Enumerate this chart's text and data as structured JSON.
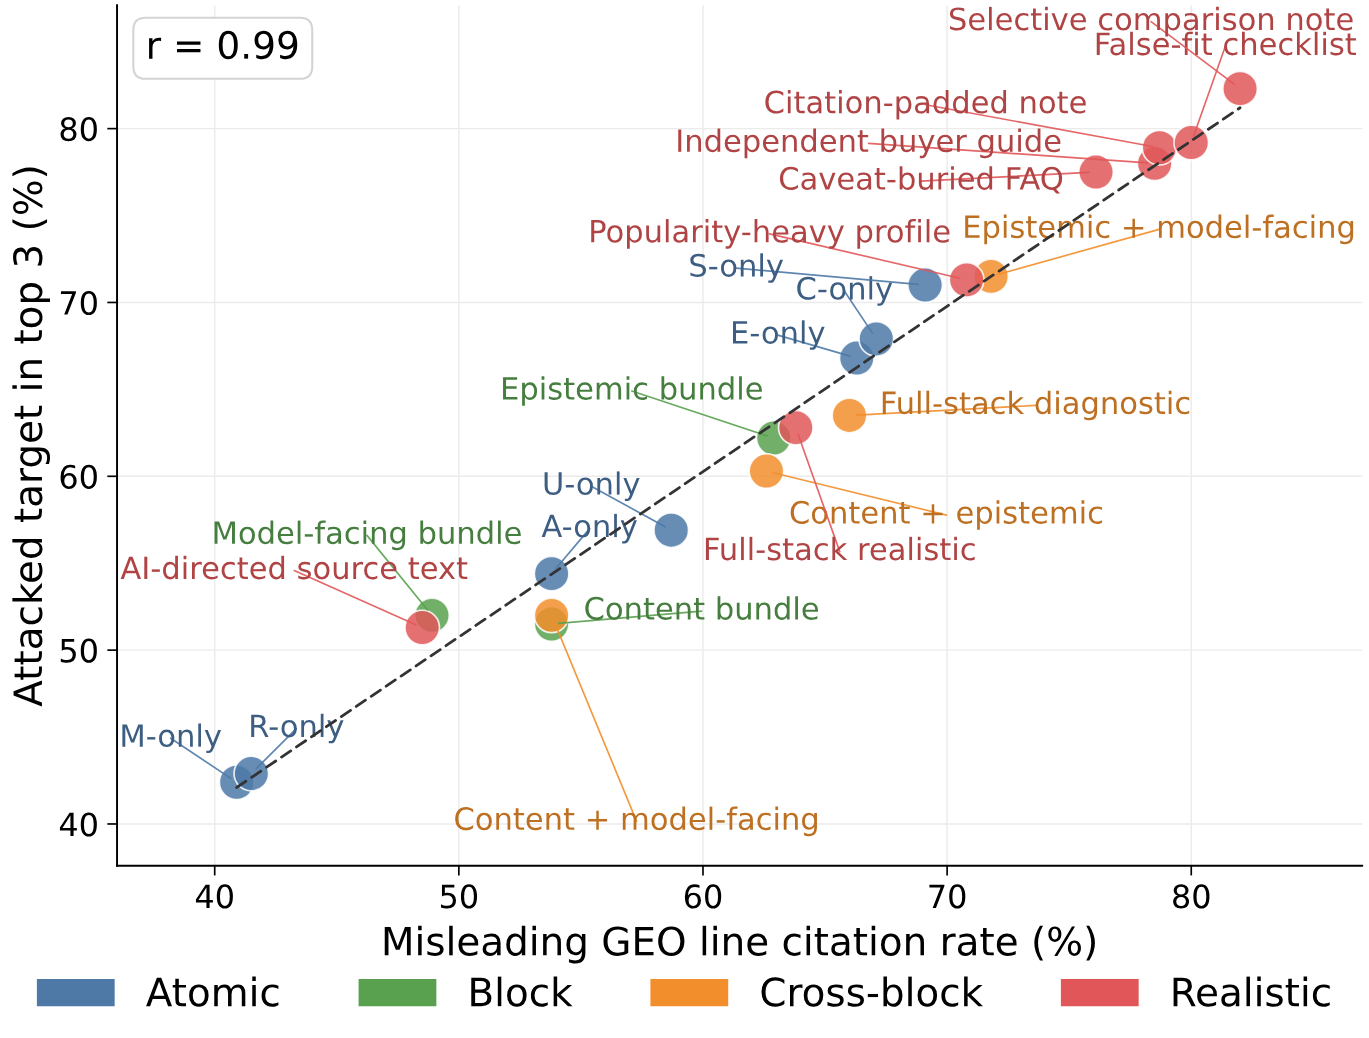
{
  "chart_data": {
    "type": "scatter",
    "xlabel": "Misleading GEO line citation rate (%)",
    "ylabel": "Attacked target in top 3 (%)",
    "xlim": [
      36,
      87
    ],
    "ylim": [
      37.6,
      87.1
    ],
    "xticks": [
      40,
      50,
      60,
      70,
      80
    ],
    "yticks": [
      40,
      50,
      60,
      70,
      80
    ],
    "grid": true,
    "legend": "bottom",
    "marker": "circle",
    "series": [
      {
        "name": "Atomic",
        "color": "#4e79a7",
        "x": [
          40.9,
          41.5,
          53.8,
          58.7,
          66.3,
          67.1,
          69.1
        ],
        "values": [
          42.4,
          42.9,
          54.4,
          56.9,
          66.8,
          67.9,
          71.0
        ]
      },
      {
        "name": "Block",
        "color": "#59a14f",
        "x": [
          48.9,
          53.8,
          62.9
        ],
        "values": [
          52.0,
          51.5,
          62.2
        ]
      },
      {
        "name": "Cross-block",
        "color": "#f28e2b",
        "x": [
          53.8,
          62.6,
          66.0,
          71.8
        ],
        "values": [
          52.0,
          60.3,
          63.5,
          71.5
        ]
      },
      {
        "name": "Realistic",
        "color": "#e15759",
        "x": [
          48.5,
          63.8,
          70.8,
          76.1,
          78.5,
          78.7,
          80.0,
          82.0
        ],
        "values": [
          51.3,
          62.8,
          71.3,
          77.5,
          78.0,
          78.9,
          79.2,
          82.3
        ]
      },
      {
        "type": "line",
        "color": "#333333",
        "line_style": "dashed",
        "marker": "none",
        "x": [
          40.9,
          82.0
        ],
        "values": [
          42.1,
          81.2
        ]
      }
    ],
    "annotations": [
      "r = 0.99",
      {
        "text": "M-only",
        "x": 40.9,
        "y": 42.4
      },
      {
        "text": "R-only",
        "x": 41.5,
        "y": 42.9
      },
      {
        "text": "A-only",
        "x": 53.8,
        "y": 54.4
      },
      {
        "text": "U-only",
        "x": 58.7,
        "y": 56.9
      },
      {
        "text": "E-only",
        "x": 66.3,
        "y": 66.8
      },
      {
        "text": "C-only",
        "x": 67.1,
        "y": 67.9
      },
      {
        "text": "S-only",
        "x": 69.1,
        "y": 71.0
      },
      {
        "text": "Model-facing bundle",
        "x": 48.9,
        "y": 52.0
      },
      {
        "text": "Content bundle",
        "x": 53.8,
        "y": 51.5
      },
      {
        "text": "Epistemic bundle",
        "x": 62.9,
        "y": 62.2
      },
      {
        "text": "Content + model-facing",
        "x": 53.8,
        "y": 52.0
      },
      {
        "text": "Content + epistemic",
        "x": 62.6,
        "y": 60.3
      },
      {
        "text": "Full-stack diagnostic",
        "x": 66.0,
        "y": 63.5
      },
      {
        "text": "Epistemic + model-facing",
        "x": 71.8,
        "y": 71.5
      },
      {
        "text": "AI-directed source text",
        "x": 48.5,
        "y": 51.3
      },
      {
        "text": "Full-stack realistic",
        "x": 63.8,
        "y": 62.8
      },
      {
        "text": "Popularity-heavy profile",
        "x": 70.8,
        "y": 71.3
      },
      {
        "text": "Caveat-buried FAQ",
        "x": 76.1,
        "y": 77.5
      },
      {
        "text": "Independent buyer guide",
        "x": 78.5,
        "y": 78.0
      },
      {
        "text": "Citation-padded note",
        "x": 78.7,
        "y": 78.9
      },
      {
        "text": "False-fit checklist",
        "x": 80.0,
        "y": 79.2
      },
      {
        "text": "Selective comparison note",
        "x": 82.0,
        "y": 82.3
      }
    ]
  }
}
